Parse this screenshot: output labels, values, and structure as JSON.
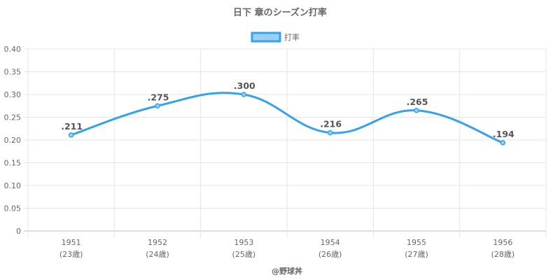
{
  "chart_data": {
    "type": "line",
    "title": "日下 章のシーズン打率",
    "categories": [
      "1951",
      "1952",
      "1953",
      "1954",
      "1955",
      "1956"
    ],
    "category_sublabels": [
      "(23歳)",
      "(24歳)",
      "(25歳)",
      "(26歳)",
      "(27歳)",
      "(28歳)"
    ],
    "series": [
      {
        "name": "打率",
        "values": [
          0.211,
          0.275,
          0.3,
          0.216,
          0.265,
          0.194
        ],
        "data_labels": [
          ".211",
          ".275",
          ".300",
          ".216",
          ".265",
          ".194"
        ]
      }
    ],
    "ylim": [
      0,
      0.4
    ],
    "yticks": [
      "0",
      "0.05",
      "0.10",
      "0.15",
      "0.20",
      "0.25",
      "0.30",
      "0.35",
      "0.40"
    ],
    "grid": true,
    "legend_position": "top",
    "colors": {
      "line": "#36a2eb",
      "fill": "#9ad0f5"
    }
  },
  "credit": "@野球丼"
}
